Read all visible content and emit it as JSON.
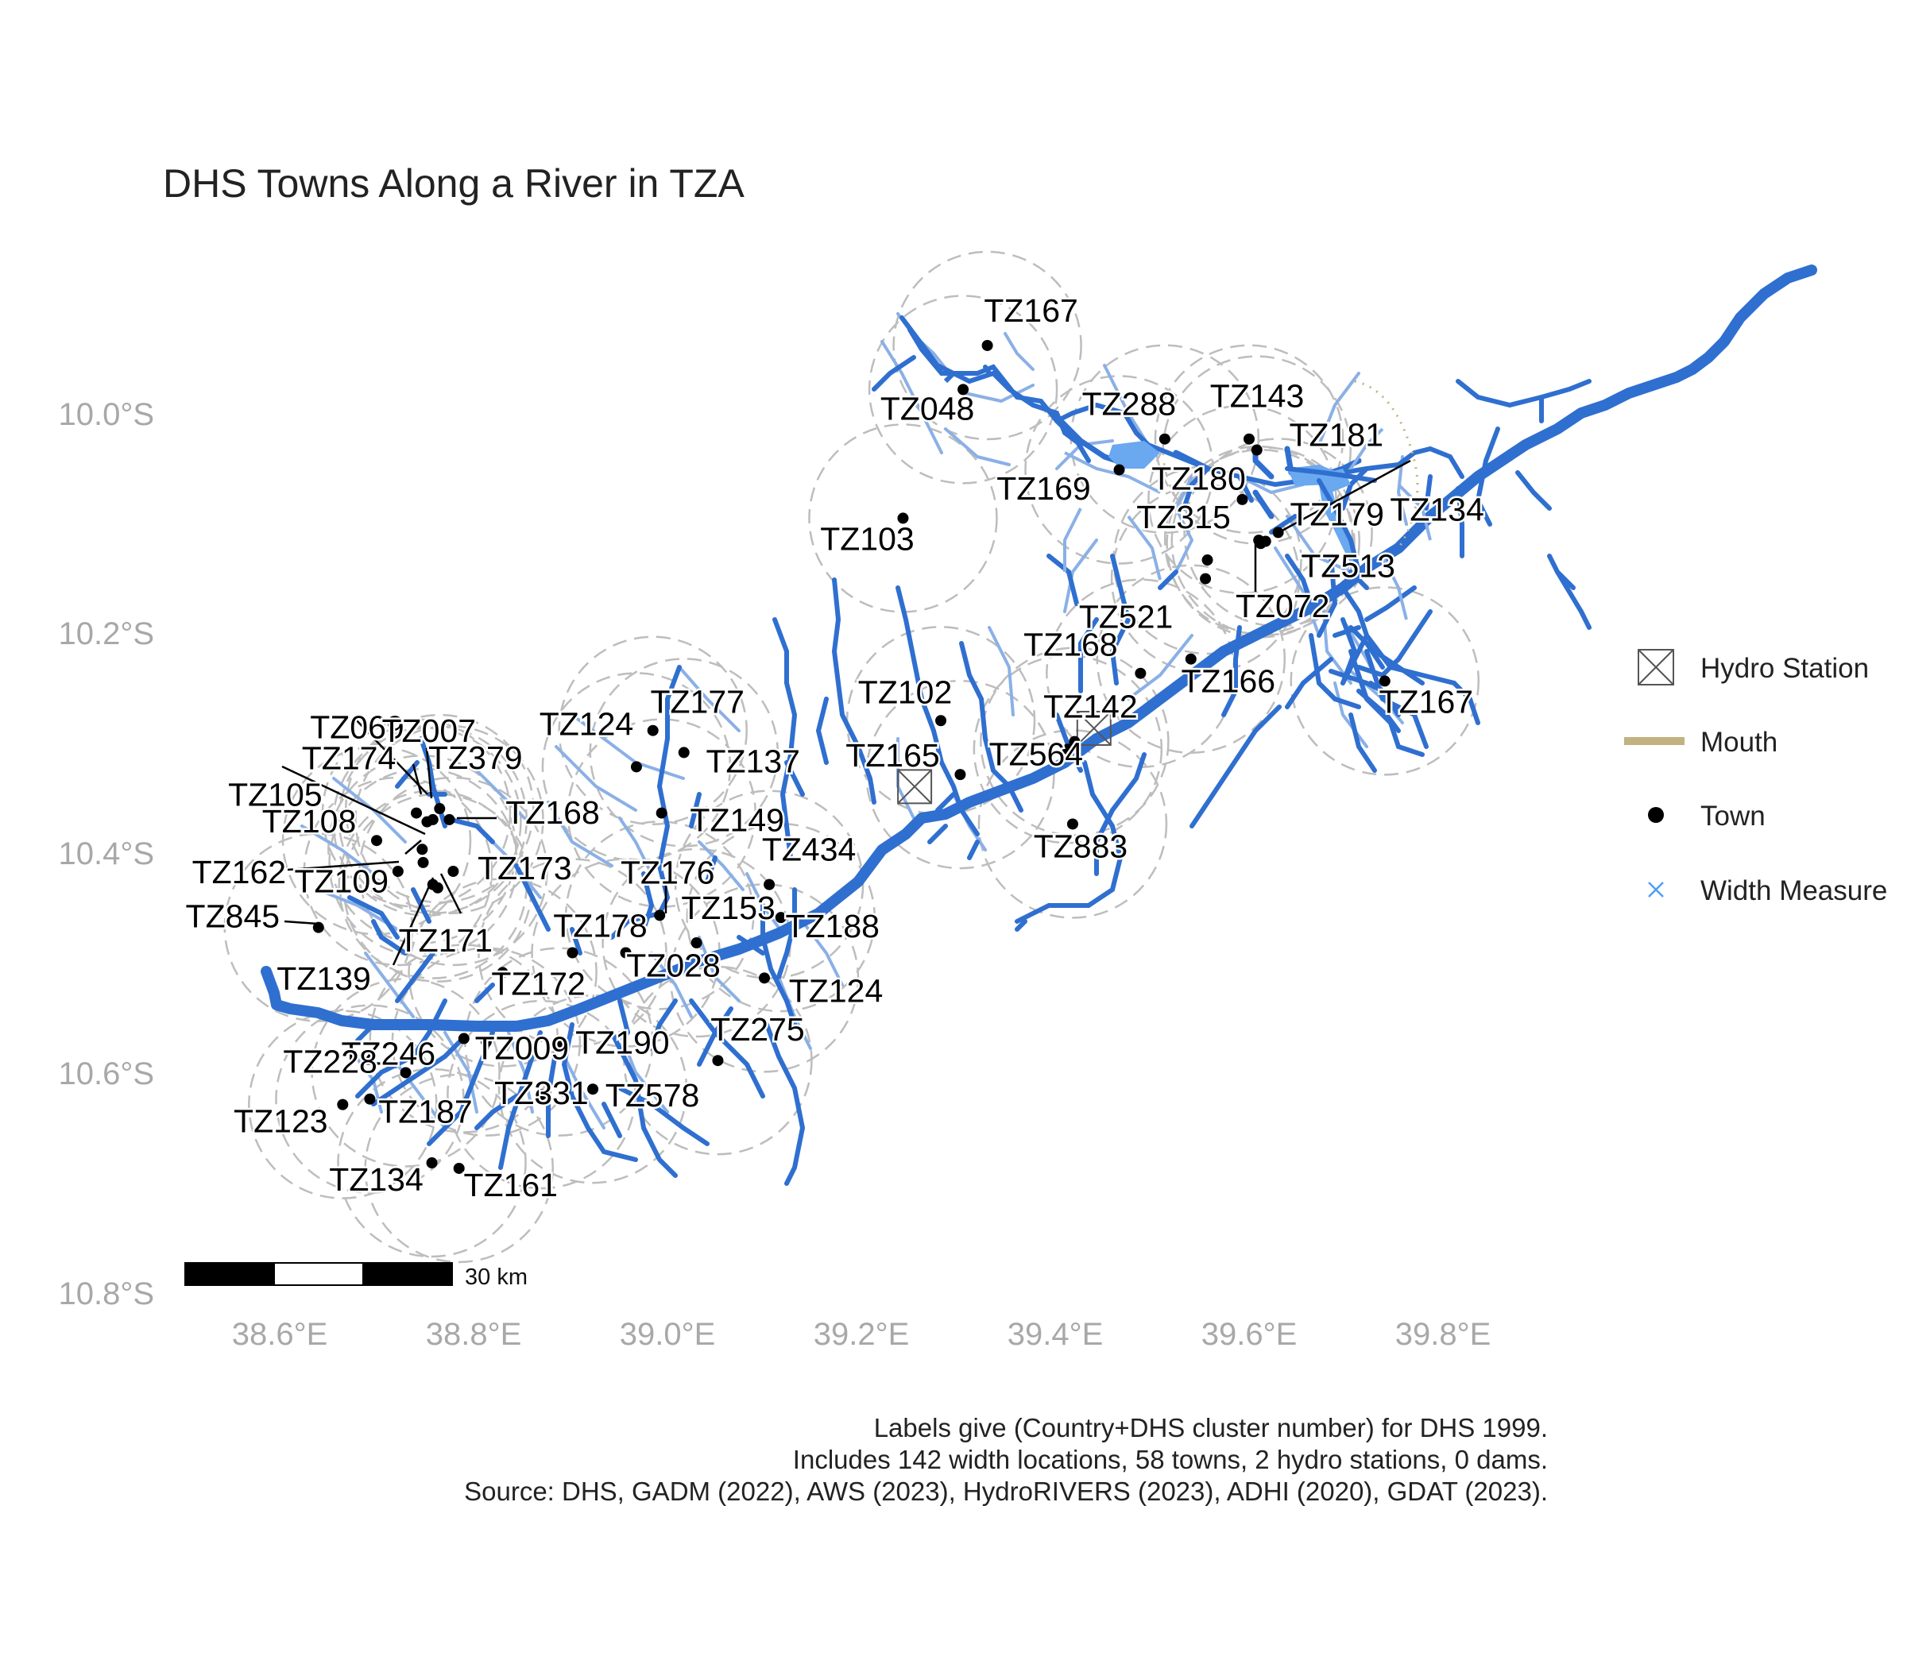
{
  "title": "DHS Towns Along a River in TZA",
  "caption": [
    "Labels give (Country+DHS cluster number) for DHS 1999.",
    "Includes 142 width locations, 58 towns, 2 hydro stations, 0 dams.",
    "Source: DHS, GADM (2022), AWS (2023), HydroRIVERS (2023), ADHI (2020), GDAT (2023)."
  ],
  "axes": {
    "y_ticks": [
      "10.0°S",
      "10.2°S",
      "10.4°S",
      "10.6°S",
      "10.8°S"
    ],
    "x_ticks": [
      "38.6°E",
      "38.8°E",
      "39.0°E",
      "39.2°E",
      "39.4°E",
      "39.6°E",
      "39.8°E"
    ]
  },
  "legend": [
    {
      "key": "hydro-station",
      "label": "Hydro Station"
    },
    {
      "key": "mouth",
      "label": "Mouth"
    },
    {
      "key": "town",
      "label": "Town"
    },
    {
      "key": "width-measure",
      "label": "Width Measure"
    }
  ],
  "scale_bar": {
    "label": "30 km"
  },
  "colors": {
    "river_main": "#2f6fd0",
    "river_light": "#8ab0e6",
    "buffer": "#bdbdbd",
    "mouth": "#c2b280",
    "town": "#000000",
    "width_measure": "#4d9ef7",
    "axis_text": "#a8a8a8"
  },
  "towns": [
    {
      "label": "TZ167",
      "lon": 39.33,
      "lat": -9.935
    },
    {
      "label": "TZ048",
      "lon": 39.305,
      "lat": -9.975
    },
    {
      "label": "TZ288",
      "lon": 39.513,
      "lat": -10.02
    },
    {
      "label": "TZ143",
      "lon": 39.6,
      "lat": -10.02
    },
    {
      "label": "TZ180",
      "lon": 39.466,
      "lat": -10.048
    },
    {
      "label": "TZ181",
      "lon": 39.608,
      "lat": -10.03
    },
    {
      "label": "TZ134",
      "lon": 39.63,
      "lat": -10.105
    },
    {
      "label": "TZ169",
      "lon": 39.593,
      "lat": -10.075
    },
    {
      "label": "TZ103",
      "lon": 39.243,
      "lat": -10.092
    },
    {
      "label": "TZ315",
      "lon": 39.557,
      "lat": -10.13
    },
    {
      "label": "TZ179",
      "lon": 39.617,
      "lat": -10.113
    },
    {
      "label": "TZ513",
      "lon": 39.612,
      "lat": -10.115
    },
    {
      "label": "TZ521",
      "lon": 39.555,
      "lat": -10.147
    },
    {
      "label": "TZ072",
      "lon": 39.61,
      "lat": -10.112
    },
    {
      "label": "TZ168",
      "lon": 39.488,
      "lat": -10.233
    },
    {
      "label": "TZ166",
      "lon": 39.54,
      "lat": -10.22
    },
    {
      "label": "TZ167",
      "lon": 39.74,
      "lat": -10.24
    },
    {
      "label": "TZ102",
      "lon": 39.282,
      "lat": -10.276
    },
    {
      "label": "TZ142",
      "lon": 39.42,
      "lat": -10.295
    },
    {
      "label": "TZ165",
      "lon": 39.302,
      "lat": -10.325
    },
    {
      "label": "TZ564",
      "lon": 39.413,
      "lat": -10.302
    },
    {
      "label": "TZ883",
      "lon": 39.418,
      "lat": -10.37
    },
    {
      "label": "TZ177",
      "lon": 38.985,
      "lat": -10.285
    },
    {
      "label": "TZ124",
      "lon": 38.968,
      "lat": -10.318
    },
    {
      "label": "TZ137",
      "lon": 39.017,
      "lat": -10.305
    },
    {
      "label": "TZ149",
      "lon": 38.994,
      "lat": -10.36
    },
    {
      "label": "TZ069",
      "lon": 38.752,
      "lat": -10.368
    },
    {
      "label": "TZ007",
      "lon": 38.758,
      "lat": -10.366
    },
    {
      "label": "TZ105",
      "lon": 38.747,
      "lat": -10.393
    },
    {
      "label": "TZ174",
      "lon": 38.741,
      "lat": -10.36
    },
    {
      "label": "TZ379",
      "lon": 38.765,
      "lat": -10.356
    },
    {
      "label": "TZ168",
      "lon": 38.775,
      "lat": -10.366
    },
    {
      "label": "TZ108",
      "lon": 38.7,
      "lat": -10.385
    },
    {
      "label": "TZ162",
      "lon": 38.722,
      "lat": -10.413
    },
    {
      "label": "TZ109",
      "lon": 38.758,
      "lat": -10.425
    },
    {
      "label": "TZ173",
      "lon": 38.779,
      "lat": -10.413
    },
    {
      "label": "TZ171",
      "lon": 38.763,
      "lat": -10.428
    },
    {
      "label": "TZ139",
      "lon": 38.748,
      "lat": -10.405
    },
    {
      "label": "TZ845",
      "lon": 38.64,
      "lat": -10.464
    },
    {
      "label": "TZ176",
      "lon": 38.992,
      "lat": -10.453
    },
    {
      "label": "TZ434",
      "lon": 39.105,
      "lat": -10.425
    },
    {
      "label": "TZ178",
      "lon": 38.902,
      "lat": -10.487
    },
    {
      "label": "TZ153",
      "lon": 39.03,
      "lat": -10.478
    },
    {
      "label": "TZ188",
      "lon": 39.117,
      "lat": -10.455
    },
    {
      "label": "TZ028",
      "lon": 38.957,
      "lat": -10.487
    },
    {
      "label": "TZ124",
      "lon": 39.1,
      "lat": -10.51
    },
    {
      "label": "TZ172",
      "lon": 38.83,
      "lat": -10.505
    },
    {
      "label": "TZ246",
      "lon": 38.79,
      "lat": -10.565
    },
    {
      "label": "TZ190",
      "lon": 38.888,
      "lat": -10.568
    },
    {
      "label": "TZ275",
      "lon": 39.052,
      "lat": -10.585
    },
    {
      "label": "TZ228",
      "lon": 38.73,
      "lat": -10.596
    },
    {
      "label": "TZ009",
      "lon": 38.813,
      "lat": -10.568
    },
    {
      "label": "TZ578",
      "lon": 38.923,
      "lat": -10.611
    },
    {
      "label": "TZ123",
      "lon": 38.665,
      "lat": -10.625
    },
    {
      "label": "TZ187",
      "lon": 38.693,
      "lat": -10.62
    },
    {
      "label": "TZ331",
      "lon": 38.87,
      "lat": -10.616
    },
    {
      "label": "TZ134",
      "lon": 38.757,
      "lat": -10.678
    },
    {
      "label": "TZ161",
      "lon": 38.785,
      "lat": -10.683
    }
  ],
  "hydro_stations": [
    {
      "lon": 39.255,
      "lat": -10.336
    },
    {
      "lon": 39.44,
      "lat": -10.283
    }
  ]
}
